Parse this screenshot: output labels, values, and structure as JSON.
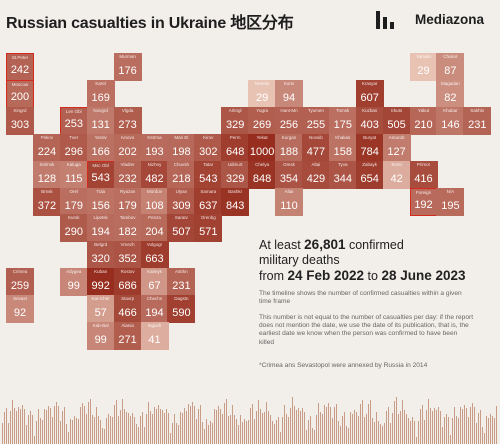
{
  "header": {
    "title": "Russian casualties in Ukraine 地区分布",
    "brand": "Mediazona",
    "logo_icon": "mediazona-bars-icon"
  },
  "headline": {
    "prefix": "At least",
    "count": "26,801",
    "suffix": "confirmed",
    "line2": "military deaths",
    "from_word": "from",
    "start": "24 Feb 2022",
    "to_word": "to",
    "end": "28 June 2023"
  },
  "notes": {
    "p1": "The timeline shows the number of confirmed casualties within a given time frame",
    "p2": "This number is not equal to the number of casualties per day: if the report does not mention the date, we use the date of its publication, that is, the earliest date we know when the person was confirmed to have been killed",
    "p3": "*Crimea ans Sevastopol were annexed by Russia in 2014"
  },
  "colors": {
    "background": "#f2eeea",
    "highlight": "#d52b1e",
    "accent": "#b8412e",
    "light": "#e8c3b4",
    "timeline": "#c99c88"
  },
  "regions": [
    {
      "code": "St.Peter",
      "value": "242",
      "row": 0,
      "col": 0,
      "highlight": true
    },
    {
      "code": "Murman",
      "value": "176",
      "row": 0,
      "col": 4
    },
    {
      "code": "Yamalo",
      "value": "29",
      "row": 0,
      "col": 15
    },
    {
      "code": "Chukot",
      "value": "87",
      "row": 0,
      "col": 16
    },
    {
      "code": "Moscow",
      "value": "200",
      "row": 1,
      "col": 0,
      "highlight": true
    },
    {
      "code": "Karel",
      "value": "169",
      "row": 1,
      "col": 3
    },
    {
      "code": "Nenets",
      "value": "29",
      "row": 1,
      "col": 9
    },
    {
      "code": "Komi",
      "value": "94",
      "row": 1,
      "col": 10
    },
    {
      "code": "Krasyar",
      "value": "607",
      "row": 1,
      "col": 13
    },
    {
      "code": "Magadan",
      "value": "82",
      "row": 1,
      "col": 16
    },
    {
      "code": "Kingrd",
      "value": "303",
      "row": 2,
      "col": 0
    },
    {
      "code": "Len Obl",
      "value": "253",
      "row": 2,
      "col": 2,
      "highlight": true
    },
    {
      "code": "Novgrd",
      "value": "131",
      "row": 2,
      "col": 3
    },
    {
      "code": "Vlgda",
      "value": "273",
      "row": 2,
      "col": 4
    },
    {
      "code": "Arkngl",
      "value": "329",
      "row": 2,
      "col": 8
    },
    {
      "code": "Yugra",
      "value": "269",
      "row": 2,
      "col": 9
    },
    {
      "code": "Hant-Mn",
      "value": "256",
      "row": 2,
      "col": 10
    },
    {
      "code": "Tyumen",
      "value": "255",
      "row": 2,
      "col": 11
    },
    {
      "code": "Tomsk",
      "value": "175",
      "row": 2,
      "col": 12
    },
    {
      "code": "Kuzbas",
      "value": "403",
      "row": 2,
      "col": 13
    },
    {
      "code": "Irkuts",
      "value": "505",
      "row": 2,
      "col": 14
    },
    {
      "code": "Yakut",
      "value": "210",
      "row": 2,
      "col": 15
    },
    {
      "code": "Khabar",
      "value": "146",
      "row": 2,
      "col": 16
    },
    {
      "code": "Sakhln",
      "value": "231",
      "row": 2,
      "col": 17
    },
    {
      "code": "Pskov",
      "value": "224",
      "row": 3,
      "col": 1
    },
    {
      "code": "Tver",
      "value": "296",
      "row": 3,
      "col": 2
    },
    {
      "code": "Yarslv",
      "value": "166",
      "row": 3,
      "col": 3
    },
    {
      "code": "Ivnovo",
      "value": "202",
      "row": 3,
      "col": 4
    },
    {
      "code": "Kstrma",
      "value": "193",
      "row": 3,
      "col": 5
    },
    {
      "code": "Mari El",
      "value": "198",
      "row": 3,
      "col": 6
    },
    {
      "code": "Kirov",
      "value": "302",
      "row": 3,
      "col": 7
    },
    {
      "code": "Perm",
      "value": "648",
      "row": 3,
      "col": 8
    },
    {
      "code": "Yekat",
      "value": "1000",
      "row": 3,
      "col": 9
    },
    {
      "code": "Kurgan",
      "value": "188",
      "row": 3,
      "col": 10
    },
    {
      "code": "Novsib",
      "value": "477",
      "row": 3,
      "col": 11
    },
    {
      "code": "Khakas",
      "value": "158",
      "row": 3,
      "col": 12
    },
    {
      "code": "Buryat",
      "value": "784",
      "row": 3,
      "col": 13
    },
    {
      "code": "Amurob",
      "value": "127",
      "row": 3,
      "col": 14
    },
    {
      "code": "Smlnsk",
      "value": "128",
      "row": 4,
      "col": 1
    },
    {
      "code": "Kaluga",
      "value": "115",
      "row": 4,
      "col": 2
    },
    {
      "code": "Msc Obl",
      "value": "543",
      "row": 4,
      "col": 3,
      "highlight": true
    },
    {
      "code": "Vladmr",
      "value": "232",
      "row": 4,
      "col": 4
    },
    {
      "code": "Nizhny",
      "value": "482",
      "row": 4,
      "col": 5
    },
    {
      "code": "Chuvsh",
      "value": "218",
      "row": 4,
      "col": 6
    },
    {
      "code": "Tatar",
      "value": "543",
      "row": 4,
      "col": 7
    },
    {
      "code": "Udmurt",
      "value": "329",
      "row": 4,
      "col": 8
    },
    {
      "code": "Chelya",
      "value": "848",
      "row": 4,
      "col": 9
    },
    {
      "code": "Omsk",
      "value": "354",
      "row": 4,
      "col": 10
    },
    {
      "code": "Altai",
      "value": "429",
      "row": 4,
      "col": 11
    },
    {
      "code": "Tyva",
      "value": "344",
      "row": 4,
      "col": 12
    },
    {
      "code": "Zabayk",
      "value": "654",
      "row": 4,
      "col": 13
    },
    {
      "code": "Evrei",
      "value": "42",
      "row": 4,
      "col": 14
    },
    {
      "code": "Primor",
      "value": "416",
      "row": 4,
      "col": 15
    },
    {
      "code": "Brnsk",
      "value": "372",
      "row": 5,
      "col": 1
    },
    {
      "code": "Orel",
      "value": "179",
      "row": 5,
      "col": 2
    },
    {
      "code": "Tula",
      "value": "156",
      "row": 5,
      "col": 3
    },
    {
      "code": "Ryazan",
      "value": "179",
      "row": 5,
      "col": 4
    },
    {
      "code": "Mordov",
      "value": "108",
      "row": 5,
      "col": 5
    },
    {
      "code": "Ulyan",
      "value": "309",
      "row": 5,
      "col": 6
    },
    {
      "code": "Samara",
      "value": "637",
      "row": 5,
      "col": 7
    },
    {
      "code": "Bashkr",
      "value": "843",
      "row": 5,
      "col": 8
    },
    {
      "code": "Altai",
      "value": "110",
      "row": 5,
      "col": 10
    },
    {
      "code": "Foreign",
      "value": "192",
      "row": 5,
      "col": 15,
      "highlight": true
    },
    {
      "code": "N/A",
      "value": "195",
      "row": 5,
      "col": 16
    },
    {
      "code": "Kursk",
      "value": "290",
      "row": 6,
      "col": 2
    },
    {
      "code": "Lipetsk",
      "value": "194",
      "row": 6,
      "col": 3
    },
    {
      "code": "Tambov",
      "value": "182",
      "row": 6,
      "col": 4
    },
    {
      "code": "Penza",
      "value": "204",
      "row": 6,
      "col": 5
    },
    {
      "code": "Saratv",
      "value": "507",
      "row": 6,
      "col": 6
    },
    {
      "code": "Orenbg",
      "value": "571",
      "row": 6,
      "col": 7
    },
    {
      "code": "Belgrd",
      "value": "320",
      "row": 7,
      "col": 3
    },
    {
      "code": "Vrnezh",
      "value": "352",
      "row": 7,
      "col": 4
    },
    {
      "code": "Volgogr",
      "value": "663",
      "row": 7,
      "col": 5
    },
    {
      "code": "Crimea",
      "value": "259",
      "row": 8,
      "col": 0
    },
    {
      "code": "Adygea",
      "value": "99",
      "row": 8,
      "col": 2
    },
    {
      "code": "Kuban",
      "value": "992",
      "row": 8,
      "col": 3
    },
    {
      "code": "Rostov",
      "value": "686",
      "row": 8,
      "col": 4
    },
    {
      "code": "Kalmyk",
      "value": "67",
      "row": 8,
      "col": 5
    },
    {
      "code": "Astrkn",
      "value": "231",
      "row": 8,
      "col": 6
    },
    {
      "code": "Sevast",
      "value": "92",
      "row": 9,
      "col": 0
    },
    {
      "code": "Kar-Cher",
      "value": "57",
      "row": 9,
      "col": 3
    },
    {
      "code": "Stavrp",
      "value": "466",
      "row": 9,
      "col": 4
    },
    {
      "code": "Chechn",
      "value": "194",
      "row": 9,
      "col": 5
    },
    {
      "code": "Dagstn",
      "value": "590",
      "row": 9,
      "col": 6
    },
    {
      "code": "Kab-Bal",
      "value": "99",
      "row": 10,
      "col": 3
    },
    {
      "code": "Alania",
      "value": "271",
      "row": 10,
      "col": 4
    },
    {
      "code": "Ingush",
      "value": "41",
      "row": 10,
      "col": 5
    }
  ]
}
